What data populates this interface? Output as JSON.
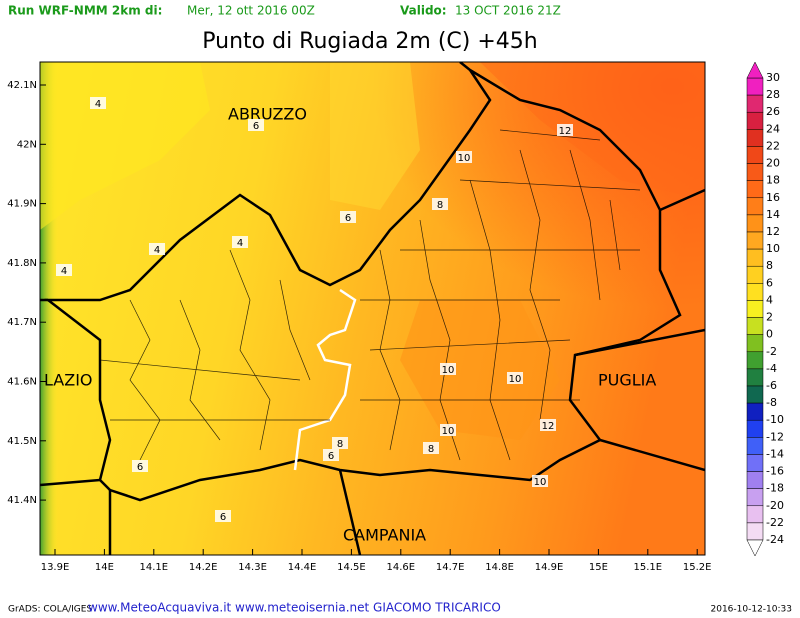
{
  "header": {
    "run_label": "Run WRF-NMM 2km di:",
    "run_date": "Mer, 12 ott 2016 00Z",
    "valid_label": "Valido:",
    "valid_date": "13 OCT 2016 21Z"
  },
  "title": "Punto di Rugiada 2m (C) +45h",
  "lat_ticks": [
    "42.1N",
    "42N",
    "41.9N",
    "41.8N",
    "41.7N",
    "41.6N",
    "41.5N",
    "41.4N"
  ],
  "lon_ticks": [
    "13.9E",
    "14E",
    "14.1E",
    "14.2E",
    "14.3E",
    "14.4E",
    "14.5E",
    "14.6E",
    "14.7E",
    "14.8E",
    "14.9E",
    "15E",
    "15.1E",
    "15.2E"
  ],
  "regions": [
    "ABRUZZO",
    "LAZIO",
    "PUGLIA",
    "CAMPANIA"
  ],
  "contour_labels": [
    "4",
    "6",
    "4",
    "4",
    "4",
    "6",
    "8",
    "10",
    "12",
    "10",
    "10",
    "10",
    "12",
    "8",
    "6",
    "8",
    "10",
    "6",
    "6"
  ],
  "colorbar": {
    "labels": [
      "30",
      "28",
      "26",
      "24",
      "22",
      "20",
      "18",
      "16",
      "14",
      "12",
      "10",
      "8",
      "6",
      "4",
      "2",
      "0",
      "-2",
      "-4",
      "-6",
      "-8",
      "-10",
      "-12",
      "-14",
      "-16",
      "-18",
      "-20",
      "-22",
      "-24"
    ],
    "colors": [
      "#f020c0",
      "#e02870",
      "#d82040",
      "#e03020",
      "#f04818",
      "#f85a18",
      "#ff6a18",
      "#ff7e18",
      "#ff9218",
      "#ffa820",
      "#ffbe20",
      "#ffd020",
      "#ffe020",
      "#f8f020",
      "#c8e020",
      "#80c020",
      "#40a030",
      "#208040",
      "#106850",
      "#1020c0",
      "#2040f0",
      "#4060f8",
      "#7070f8",
      "#a080f0",
      "#c8a0f0",
      "#e8c0f0",
      "#f4dcf4"
    ]
  },
  "footer": {
    "left": "GrADS: COLA/IGES",
    "center": "www.MeteoAcquaviva.it www.meteoisernia.net GIACOMO TRICARICO",
    "right": "2016-10-12-10:33"
  }
}
